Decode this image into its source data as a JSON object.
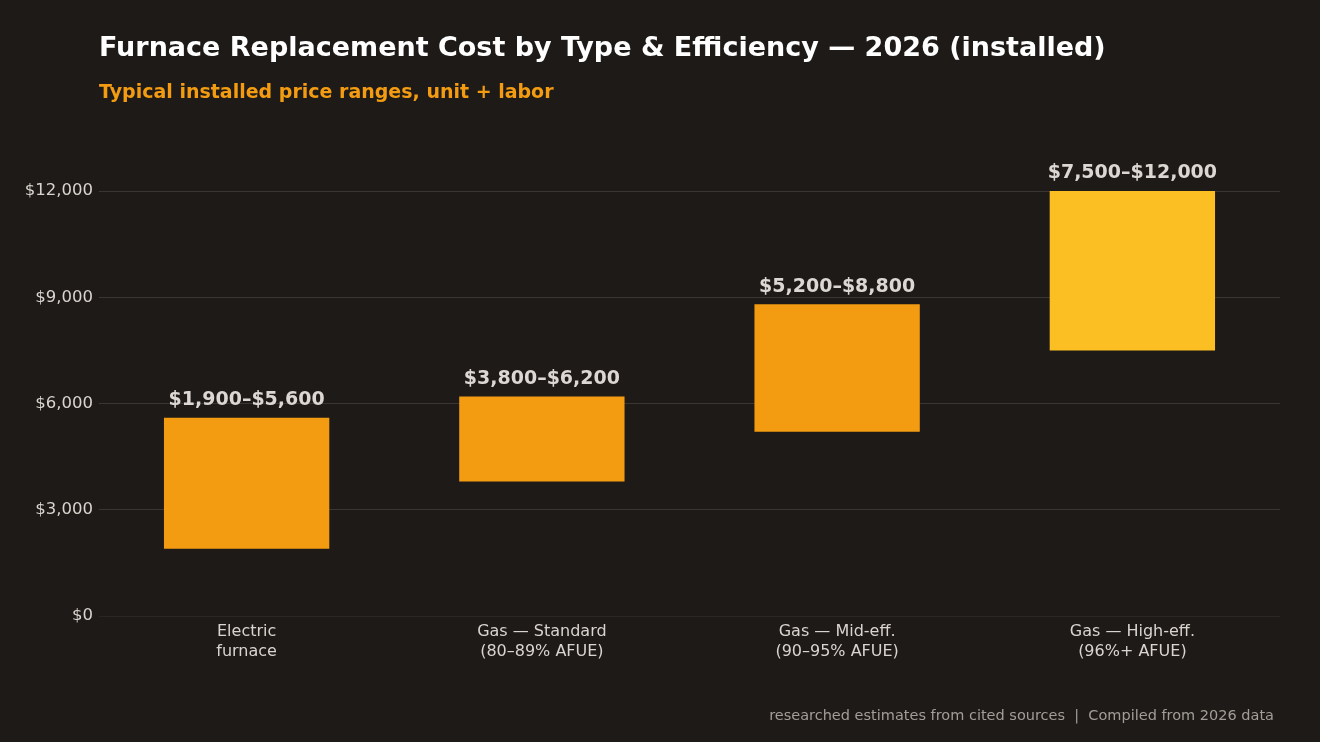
{
  "chart_data": {
    "type": "bar",
    "title": "Furnace Replacement Cost by Type & Efficiency — 2026 (installed)",
    "subtitle": "Typical installed price ranges, unit + labor",
    "categories": [
      "Electric\nfurnace",
      "Gas — Standard\n(80–89% AFUE)",
      "Gas — Mid-eff.\n(90–95% AFUE)",
      "Gas — High-eff.\n(96%+ AFUE)"
    ],
    "base": [
      1900,
      3800,
      5200,
      7500
    ],
    "values": [
      3700,
      2400,
      3600,
      4500
    ],
    "colors": [
      "#f39c12",
      "#f39c12",
      "#f39c12",
      "#fbbf24"
    ],
    "value_labels": [
      "$1,900–$5,600",
      "$3,800–$6,200",
      "$5,200–$8,800",
      "$7,500–$12,000"
    ],
    "ylim": [
      0,
      12000
    ],
    "yticks": [
      {
        "value": 0,
        "label": "$0"
      },
      {
        "value": 3000,
        "label": "$3,000"
      },
      {
        "value": 6000,
        "label": "$6,000"
      },
      {
        "value": 9000,
        "label": "$9,000"
      },
      {
        "value": 12000,
        "label": "$12,000"
      }
    ],
    "grid": "y",
    "annotations": [
      "researched estimates from cited sources  |  Compiled from 2026 data"
    ]
  }
}
